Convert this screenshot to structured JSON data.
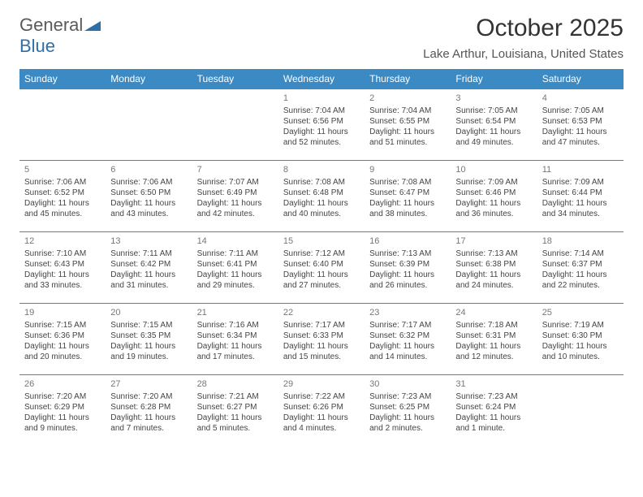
{
  "logo": {
    "word1": "General",
    "word2": "Blue"
  },
  "title": "October 2025",
  "location": "Lake Arthur, Louisiana, United States",
  "dow": [
    "Sunday",
    "Monday",
    "Tuesday",
    "Wednesday",
    "Thursday",
    "Friday",
    "Saturday"
  ],
  "colors": {
    "header_bg": "#3b8ac4",
    "header_text": "#ffffff",
    "title_text": "#333333",
    "logo_gray": "#5a5a5a",
    "logo_blue": "#2f6fa8",
    "cell_border": "#3b8ac4"
  },
  "weeks": [
    [
      {},
      {},
      {},
      {
        "n": "1",
        "sr": "Sunrise: 7:04 AM",
        "ss": "Sunset: 6:56 PM",
        "dl": "Daylight: 11 hours and 52 minutes."
      },
      {
        "n": "2",
        "sr": "Sunrise: 7:04 AM",
        "ss": "Sunset: 6:55 PM",
        "dl": "Daylight: 11 hours and 51 minutes."
      },
      {
        "n": "3",
        "sr": "Sunrise: 7:05 AM",
        "ss": "Sunset: 6:54 PM",
        "dl": "Daylight: 11 hours and 49 minutes."
      },
      {
        "n": "4",
        "sr": "Sunrise: 7:05 AM",
        "ss": "Sunset: 6:53 PM",
        "dl": "Daylight: 11 hours and 47 minutes."
      }
    ],
    [
      {
        "n": "5",
        "sr": "Sunrise: 7:06 AM",
        "ss": "Sunset: 6:52 PM",
        "dl": "Daylight: 11 hours and 45 minutes."
      },
      {
        "n": "6",
        "sr": "Sunrise: 7:06 AM",
        "ss": "Sunset: 6:50 PM",
        "dl": "Daylight: 11 hours and 43 minutes."
      },
      {
        "n": "7",
        "sr": "Sunrise: 7:07 AM",
        "ss": "Sunset: 6:49 PM",
        "dl": "Daylight: 11 hours and 42 minutes."
      },
      {
        "n": "8",
        "sr": "Sunrise: 7:08 AM",
        "ss": "Sunset: 6:48 PM",
        "dl": "Daylight: 11 hours and 40 minutes."
      },
      {
        "n": "9",
        "sr": "Sunrise: 7:08 AM",
        "ss": "Sunset: 6:47 PM",
        "dl": "Daylight: 11 hours and 38 minutes."
      },
      {
        "n": "10",
        "sr": "Sunrise: 7:09 AM",
        "ss": "Sunset: 6:46 PM",
        "dl": "Daylight: 11 hours and 36 minutes."
      },
      {
        "n": "11",
        "sr": "Sunrise: 7:09 AM",
        "ss": "Sunset: 6:44 PM",
        "dl": "Daylight: 11 hours and 34 minutes."
      }
    ],
    [
      {
        "n": "12",
        "sr": "Sunrise: 7:10 AM",
        "ss": "Sunset: 6:43 PM",
        "dl": "Daylight: 11 hours and 33 minutes."
      },
      {
        "n": "13",
        "sr": "Sunrise: 7:11 AM",
        "ss": "Sunset: 6:42 PM",
        "dl": "Daylight: 11 hours and 31 minutes."
      },
      {
        "n": "14",
        "sr": "Sunrise: 7:11 AM",
        "ss": "Sunset: 6:41 PM",
        "dl": "Daylight: 11 hours and 29 minutes."
      },
      {
        "n": "15",
        "sr": "Sunrise: 7:12 AM",
        "ss": "Sunset: 6:40 PM",
        "dl": "Daylight: 11 hours and 27 minutes."
      },
      {
        "n": "16",
        "sr": "Sunrise: 7:13 AM",
        "ss": "Sunset: 6:39 PM",
        "dl": "Daylight: 11 hours and 26 minutes."
      },
      {
        "n": "17",
        "sr": "Sunrise: 7:13 AM",
        "ss": "Sunset: 6:38 PM",
        "dl": "Daylight: 11 hours and 24 minutes."
      },
      {
        "n": "18",
        "sr": "Sunrise: 7:14 AM",
        "ss": "Sunset: 6:37 PM",
        "dl": "Daylight: 11 hours and 22 minutes."
      }
    ],
    [
      {
        "n": "19",
        "sr": "Sunrise: 7:15 AM",
        "ss": "Sunset: 6:36 PM",
        "dl": "Daylight: 11 hours and 20 minutes."
      },
      {
        "n": "20",
        "sr": "Sunrise: 7:15 AM",
        "ss": "Sunset: 6:35 PM",
        "dl": "Daylight: 11 hours and 19 minutes."
      },
      {
        "n": "21",
        "sr": "Sunrise: 7:16 AM",
        "ss": "Sunset: 6:34 PM",
        "dl": "Daylight: 11 hours and 17 minutes."
      },
      {
        "n": "22",
        "sr": "Sunrise: 7:17 AM",
        "ss": "Sunset: 6:33 PM",
        "dl": "Daylight: 11 hours and 15 minutes."
      },
      {
        "n": "23",
        "sr": "Sunrise: 7:17 AM",
        "ss": "Sunset: 6:32 PM",
        "dl": "Daylight: 11 hours and 14 minutes."
      },
      {
        "n": "24",
        "sr": "Sunrise: 7:18 AM",
        "ss": "Sunset: 6:31 PM",
        "dl": "Daylight: 11 hours and 12 minutes."
      },
      {
        "n": "25",
        "sr": "Sunrise: 7:19 AM",
        "ss": "Sunset: 6:30 PM",
        "dl": "Daylight: 11 hours and 10 minutes."
      }
    ],
    [
      {
        "n": "26",
        "sr": "Sunrise: 7:20 AM",
        "ss": "Sunset: 6:29 PM",
        "dl": "Daylight: 11 hours and 9 minutes."
      },
      {
        "n": "27",
        "sr": "Sunrise: 7:20 AM",
        "ss": "Sunset: 6:28 PM",
        "dl": "Daylight: 11 hours and 7 minutes."
      },
      {
        "n": "28",
        "sr": "Sunrise: 7:21 AM",
        "ss": "Sunset: 6:27 PM",
        "dl": "Daylight: 11 hours and 5 minutes."
      },
      {
        "n": "29",
        "sr": "Sunrise: 7:22 AM",
        "ss": "Sunset: 6:26 PM",
        "dl": "Daylight: 11 hours and 4 minutes."
      },
      {
        "n": "30",
        "sr": "Sunrise: 7:23 AM",
        "ss": "Sunset: 6:25 PM",
        "dl": "Daylight: 11 hours and 2 minutes."
      },
      {
        "n": "31",
        "sr": "Sunrise: 7:23 AM",
        "ss": "Sunset: 6:24 PM",
        "dl": "Daylight: 11 hours and 1 minute."
      },
      {}
    ]
  ]
}
